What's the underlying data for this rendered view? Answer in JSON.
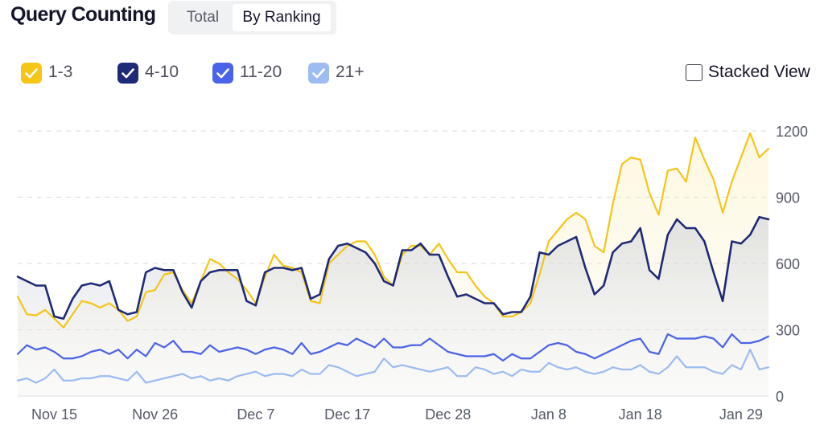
{
  "header": {
    "title": "Query Counting",
    "tabs": [
      {
        "label": "Total",
        "selected": false
      },
      {
        "label": "By Ranking",
        "selected": true
      }
    ]
  },
  "legend": [
    {
      "label": "1-3",
      "color": "#f5c518",
      "checked": true
    },
    {
      "label": "4-10",
      "color": "#1e2a78",
      "checked": true
    },
    {
      "label": "11-20",
      "color": "#4a63e8",
      "checked": true
    },
    {
      "label": "21+",
      "color": "#9dbcf2",
      "checked": true
    }
  ],
  "stacked_view": {
    "label": "Stacked View",
    "checked": false
  },
  "chart_data": {
    "type": "line",
    "x_tick_labels": [
      "Nov 15",
      "Nov 26",
      "Dec 7",
      "Dec 17",
      "Dec 28",
      "Jan 8",
      "Jan 18",
      "Jan 29"
    ],
    "x_tick_index": [
      4,
      15,
      26,
      36,
      47,
      58,
      68,
      79
    ],
    "ylim": [
      0,
      1200
    ],
    "y_ticks": [
      "0",
      "300",
      "600",
      "900",
      "1200"
    ],
    "y_axis_position": "right",
    "grid": true,
    "legend_position": "top-left",
    "series": [
      {
        "name": "1-3",
        "color": "#f5c518",
        "fill": true,
        "values": [
          450,
          370,
          365,
          390,
          350,
          310,
          370,
          430,
          420,
          400,
          420,
          390,
          340,
          360,
          470,
          480,
          550,
          560,
          480,
          420,
          520,
          620,
          600,
          560,
          530,
          480,
          420,
          540,
          640,
          590,
          580,
          560,
          430,
          420,
          600,
          640,
          680,
          700,
          700,
          640,
          540,
          500,
          640,
          680,
          680,
          640,
          690,
          620,
          560,
          560,
          500,
          450,
          420,
          360,
          360,
          380,
          420,
          550,
          700,
          750,
          800,
          830,
          800,
          680,
          650,
          870,
          1050,
          1080,
          1070,
          920,
          820,
          1020,
          1030,
          970,
          1170,
          1070,
          980,
          830,
          970,
          1080,
          1190,
          1080,
          1120
        ]
      },
      {
        "name": "4-10",
        "color": "#1e2a78",
        "fill": true,
        "values": [
          540,
          520,
          500,
          500,
          360,
          350,
          440,
          500,
          510,
          500,
          520,
          390,
          370,
          380,
          560,
          580,
          570,
          570,
          470,
          400,
          520,
          560,
          570,
          570,
          570,
          430,
          410,
          560,
          580,
          580,
          570,
          580,
          440,
          460,
          620,
          680,
          690,
          670,
          650,
          600,
          520,
          500,
          660,
          660,
          690,
          640,
          640,
          540,
          450,
          460,
          440,
          420,
          420,
          370,
          380,
          380,
          450,
          650,
          640,
          680,
          700,
          720,
          580,
          460,
          500,
          650,
          690,
          700,
          760,
          570,
          530,
          730,
          800,
          760,
          760,
          700,
          560,
          430,
          700,
          690,
          730,
          810,
          800
        ]
      },
      {
        "name": "11-20",
        "color": "#4a63e8",
        "fill": false,
        "values": [
          190,
          230,
          210,
          220,
          200,
          170,
          170,
          180,
          200,
          210,
          190,
          210,
          170,
          210,
          180,
          240,
          220,
          250,
          200,
          200,
          190,
          230,
          200,
          210,
          220,
          210,
          190,
          210,
          220,
          210,
          190,
          240,
          190,
          200,
          220,
          240,
          230,
          260,
          240,
          220,
          260,
          220,
          220,
          230,
          230,
          260,
          230,
          200,
          190,
          180,
          180,
          180,
          190,
          160,
          190,
          170,
          170,
          200,
          230,
          240,
          230,
          200,
          190,
          170,
          190,
          210,
          230,
          250,
          260,
          200,
          190,
          280,
          260,
          260,
          260,
          270,
          260,
          220,
          280,
          240,
          240,
          250,
          270
        ]
      },
      {
        "name": "21+",
        "color": "#9dbcf2",
        "fill": false,
        "values": [
          70,
          80,
          60,
          80,
          120,
          70,
          70,
          80,
          80,
          90,
          90,
          80,
          70,
          110,
          60,
          70,
          80,
          90,
          100,
          80,
          90,
          70,
          80,
          70,
          90,
          100,
          110,
          90,
          100,
          100,
          90,
          120,
          100,
          100,
          140,
          130,
          110,
          90,
          100,
          110,
          170,
          130,
          140,
          130,
          120,
          110,
          120,
          130,
          90,
          90,
          130,
          120,
          100,
          110,
          90,
          120,
          110,
          110,
          150,
          130,
          120,
          130,
          110,
          100,
          110,
          130,
          120,
          120,
          140,
          110,
          100,
          130,
          180,
          130,
          130,
          130,
          110,
          100,
          140,
          120,
          210,
          120,
          130
        ]
      }
    ]
  }
}
